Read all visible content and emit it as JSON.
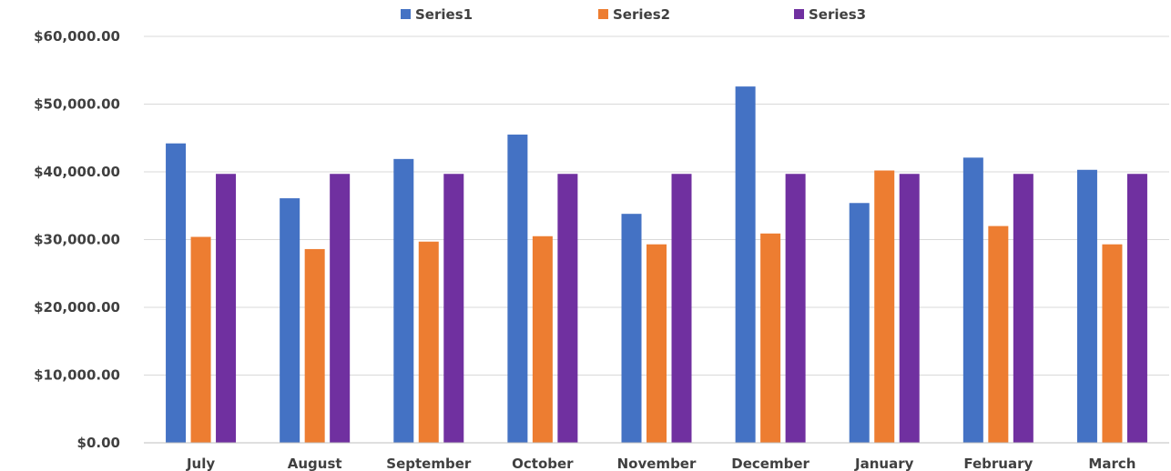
{
  "chart_data": {
    "type": "bar",
    "title": "",
    "xlabel": "",
    "ylabel": "",
    "ylim": [
      0,
      60000
    ],
    "y_ticks": [
      0,
      10000,
      20000,
      30000,
      40000,
      50000,
      60000
    ],
    "y_tick_labels": [
      "$0.00",
      "$10,000.00",
      "$20,000.00",
      "$30,000.00",
      "$40,000.00",
      "$50,000.00",
      "$60,000.00"
    ],
    "grid": "horizontal",
    "legend_position": "top",
    "categories": [
      "July",
      "August",
      "September",
      "October",
      "November",
      "December",
      "January",
      "February",
      "March"
    ],
    "series": [
      {
        "name": "Series1",
        "color": "#4472c4",
        "values": [
          44200,
          36100,
          41900,
          45500,
          33800,
          52600,
          35400,
          42100,
          40300
        ]
      },
      {
        "name": "Series2",
        "color": "#ed7d31",
        "values": [
          30400,
          28600,
          29700,
          30500,
          29300,
          30900,
          40200,
          32000,
          29300
        ]
      },
      {
        "name": "Series3",
        "color": "#7030a0",
        "values": [
          39700,
          39700,
          39700,
          39700,
          39700,
          39700,
          39700,
          39700,
          39700
        ]
      }
    ]
  }
}
